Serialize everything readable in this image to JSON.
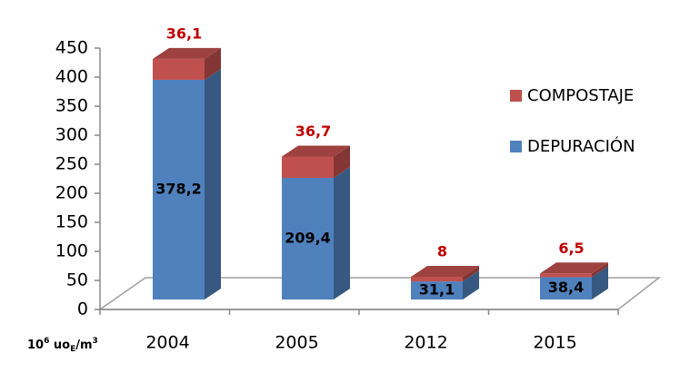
{
  "chart_data": {
    "type": "bar3d_stacked",
    "y_unit_parts": [
      "10",
      "6",
      " uo",
      "E",
      "/m",
      "3"
    ],
    "categories": [
      "2004",
      "2005",
      "2012",
      "2015"
    ],
    "series": [
      {
        "name": "DEPURACIÓN",
        "color": "#4f81bd",
        "values": [
          378.2,
          209.4,
          31.1,
          38.4
        ],
        "value_labels": [
          "378,2",
          "209,4",
          "31,1",
          "38,4"
        ],
        "label_color": "#000000"
      },
      {
        "name": "COMPOSTAJE",
        "color": "#c0504d",
        "values": [
          36.1,
          36.7,
          8,
          6.5
        ],
        "value_labels": [
          "36,1",
          "36,7",
          "8",
          "6,5"
        ],
        "label_color": "#c00000"
      }
    ],
    "ylim": [
      0,
      450
    ],
    "yticks": [
      0,
      50,
      100,
      150,
      200,
      250,
      300,
      350,
      400,
      450
    ]
  }
}
